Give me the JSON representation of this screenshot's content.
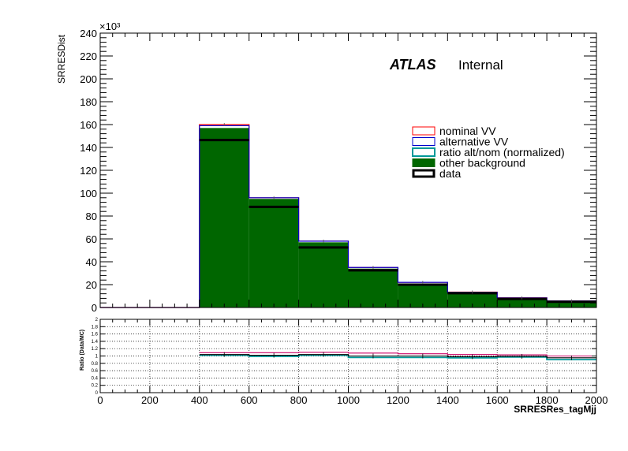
{
  "chart_data": [
    {
      "type": "bar",
      "panel": "main",
      "ylabel": "SRRESDist",
      "exponent_label": "×10³",
      "atlas_label": "ATLAS",
      "status_label": "Internal",
      "bin_edges": [
        0,
        200,
        400,
        600,
        800,
        1000,
        1200,
        1400,
        1600,
        1800,
        2000
      ],
      "xlim": [
        0,
        2000
      ],
      "ylim": [
        0,
        240
      ],
      "y_ticks": [
        0,
        20,
        40,
        60,
        80,
        100,
        120,
        140,
        160,
        180,
        200,
        220,
        240
      ],
      "legend": [
        {
          "label": "nominal VV",
          "style": "box",
          "color": "#ff0000"
        },
        {
          "label": "alternative VV",
          "style": "box",
          "color": "#0000cc"
        },
        {
          "label": "ratio alt/nom (normalized)",
          "style": "box",
          "color": "#009999"
        },
        {
          "label": "other background",
          "style": "fill",
          "color": "#006600"
        },
        {
          "label": "data",
          "style": "box-thick",
          "color": "#000000"
        }
      ],
      "series": [
        {
          "name": "other background",
          "color": "#006600",
          "values": [
            0,
            0,
            157,
            95,
            57,
            34,
            21,
            13,
            8,
            5.5
          ]
        },
        {
          "name": "nominal VV",
          "color": "#ff0000",
          "values": [
            0,
            0,
            160,
            96,
            58,
            35,
            22,
            13.5,
            8.5,
            5.8
          ]
        },
        {
          "name": "alternative VV",
          "color": "#0000cc",
          "values": [
            0,
            0,
            159,
            96,
            58,
            35,
            22,
            13.3,
            8.4,
            5.7
          ]
        },
        {
          "name": "data",
          "color": "#000000",
          "values": [
            0,
            0,
            146.5,
            88,
            52.5,
            32.5,
            20,
            12.5,
            7.5,
            5
          ]
        }
      ]
    },
    {
      "type": "line",
      "panel": "ratio",
      "ylabel": "Ratio (Data/MC)",
      "xlabel": "SRRESRes_tagMjj",
      "xlim": [
        0,
        2000
      ],
      "ylim": [
        0,
        2
      ],
      "x_ticks": [
        0,
        200,
        400,
        600,
        800,
        1000,
        1200,
        1400,
        1600,
        1800,
        2000
      ],
      "y_ticks": [
        0,
        0.2,
        0.4,
        0.6,
        0.8,
        1,
        1.2,
        1.4,
        1.6,
        1.8,
        2
      ],
      "y_tick_labels": [
        "0",
        "0.2",
        "0.4",
        "0.6",
        "0.8",
        "1",
        "1.2",
        "1.4",
        "1.6",
        "1.8",
        "2"
      ],
      "series": [
        {
          "name": "nominal VV",
          "color": "#cc0066",
          "values": [
            null,
            null,
            1.09,
            1.09,
            1.1,
            1.08,
            1.06,
            1.04,
            1.03,
            1.0
          ]
        },
        {
          "name": "ratio alt/nom (normalized)",
          "color": "#009999",
          "values": [
            null,
            null,
            1.02,
            0.99,
            1.02,
            0.96,
            0.96,
            0.95,
            0.97,
            0.9
          ]
        },
        {
          "name": "data",
          "color": "#000000",
          "values": [
            null,
            null,
            1.04,
            1.02,
            1.04,
            1.0,
            1.0,
            0.98,
            0.99,
            0.95
          ]
        }
      ]
    }
  ]
}
